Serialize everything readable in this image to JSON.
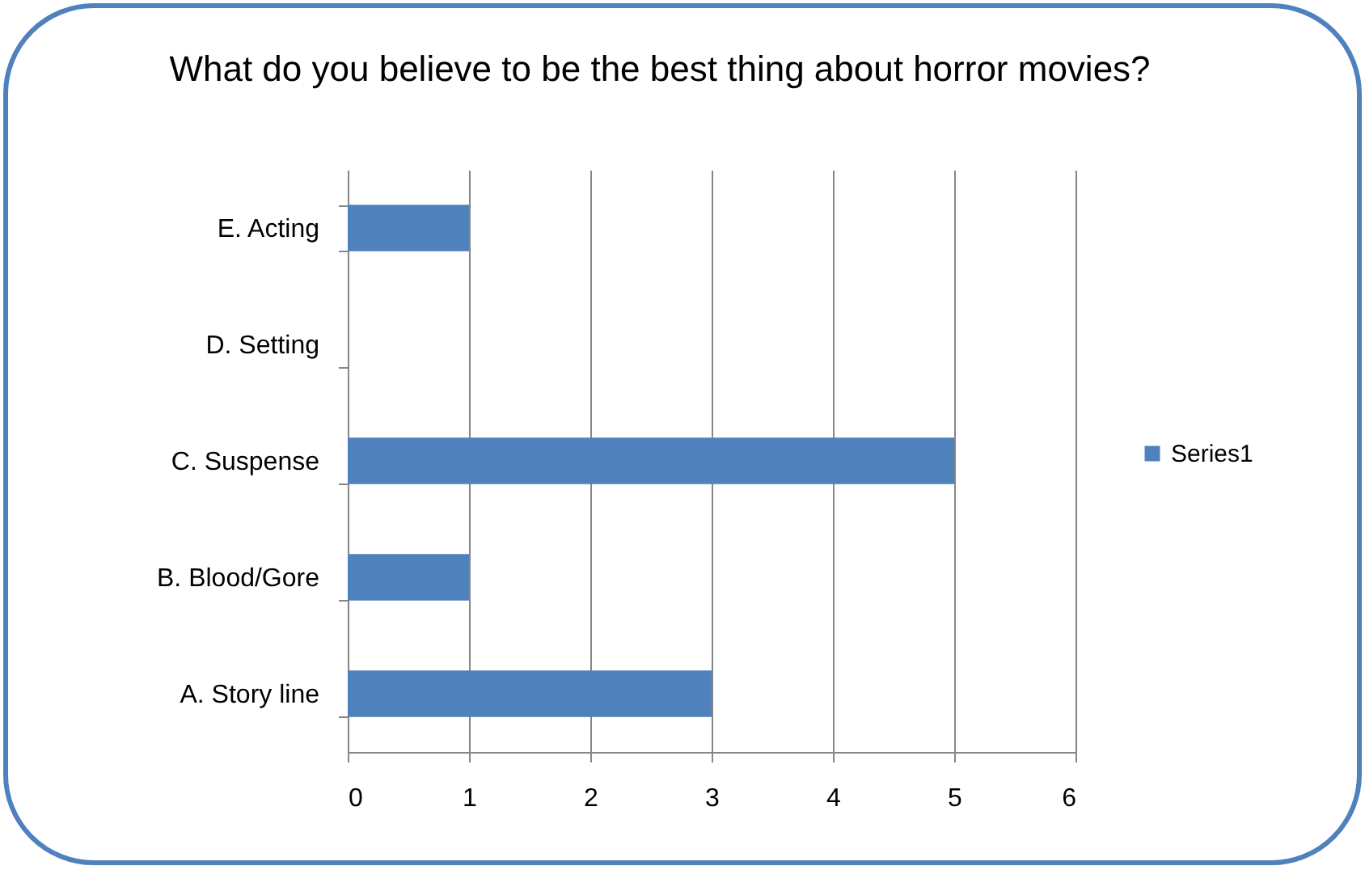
{
  "chart_data": {
    "type": "bar",
    "orientation": "horizontal",
    "title": "What do you believe to be the best thing about horror movies?",
    "categories": [
      "E. Acting",
      "D. Setting",
      "C. Suspense",
      "B. Blood/Gore",
      "A. Story line"
    ],
    "series": [
      {
        "name": "Series1",
        "color": "#4f81bd",
        "values": [
          1,
          0,
          5,
          1,
          3
        ]
      }
    ],
    "xlim": [
      0,
      6
    ],
    "xticks": [
      0,
      1,
      2,
      3,
      4,
      5,
      6
    ],
    "grid": "x",
    "legend": "right"
  }
}
